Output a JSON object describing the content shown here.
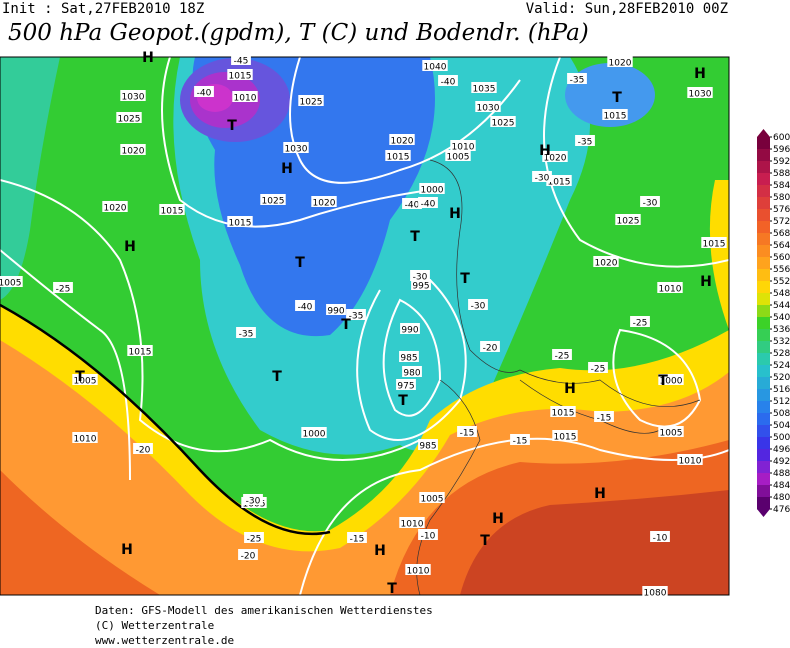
{
  "header": {
    "init": "Init : Sat,27FEB2010 18Z",
    "valid": "Valid: Sun,28FEB2010 00Z",
    "title": "500 hPa Geopot.(gpdm), T (C) und Bodendr. (hPa)"
  },
  "colorbar": {
    "labels": [
      "600",
      "596",
      "592",
      "588",
      "584",
      "580",
      "576",
      "572",
      "568",
      "564",
      "560",
      "556",
      "552",
      "548",
      "544",
      "540",
      "536",
      "532",
      "528",
      "524",
      "520",
      "516",
      "512",
      "508",
      "504",
      "500",
      "496",
      "492",
      "488",
      "484",
      "480",
      "476"
    ]
  },
  "map": {
    "markers": [
      "H",
      "H",
      "H",
      "H",
      "H",
      "H",
      "H",
      "H",
      "H",
      "H",
      "H",
      "H",
      "T",
      "T",
      "T",
      "T",
      "T",
      "T",
      "T",
      "T",
      "T",
      "T",
      "T",
      "T"
    ],
    "isobars": [
      "1015",
      "1010",
      "1030",
      "1025",
      "1020",
      "1020",
      "1015",
      "1015",
      "1025",
      "1020",
      "1030",
      "1025",
      "1040",
      "1035",
      "1030",
      "1025",
      "1020",
      "1015",
      "1010",
      "1005",
      "1000",
      "1020",
      "1015",
      "1025",
      "1020",
      "1015",
      "1010",
      "1030",
      "1020",
      "1015",
      "995",
      "990",
      "990",
      "985",
      "980",
      "975",
      "1000",
      "985",
      "1005",
      "1010",
      "1005",
      "1015",
      "1005",
      "1000",
      "1005",
      "1010",
      "1015",
      "1015",
      "1010",
      "1005",
      "1010",
      "1080"
    ],
    "isotherms": [
      "-45",
      "-40",
      "-40",
      "-35",
      "-35",
      "-30",
      "-30",
      "-25",
      "-25",
      "-25",
      "-25",
      "-20",
      "-30",
      "-30",
      "-35",
      "-40",
      "-35",
      "-30",
      "-25",
      "-20",
      "-15",
      "-15",
      "-15",
      "-15",
      "-20",
      "-10",
      "-10",
      "-40",
      "-40"
    ]
  },
  "footer": {
    "lines": [
      "Daten: GFS-Modell des amerikanischen Wetterdienstes",
      "(C) Wetterzentrale",
      "www.wetterzentrale.de"
    ]
  }
}
